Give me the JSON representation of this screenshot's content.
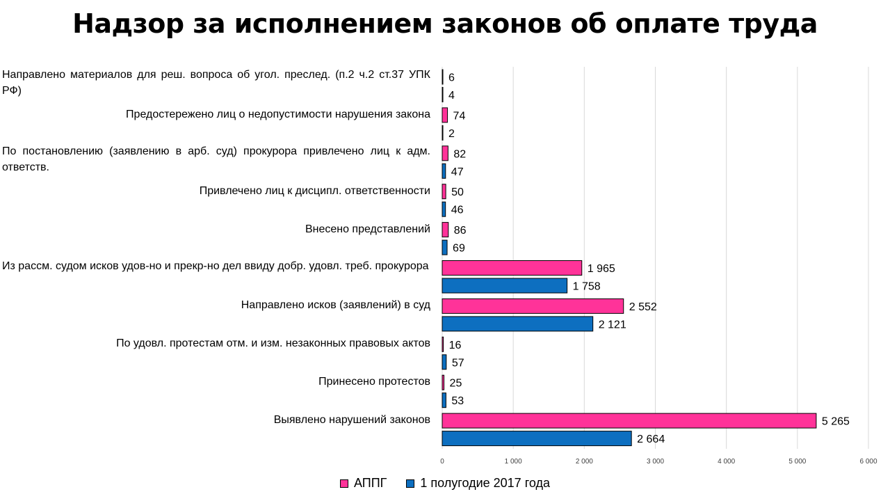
{
  "title": "Надзор за исполнением законов об оплате труда",
  "chart_data": {
    "type": "bar",
    "orientation": "horizontal",
    "categories": [
      "Направлено материалов для реш. вопроса об угол. преслед. (п.2 ч.2 ст.37 УПК РФ)",
      "Предостережено лиц о недопустимости нарушения  закона",
      "По постановлению (заявлению в арб. суд) прокурора привлечено лиц к адм. ответств.",
      "Привлечено лиц к дисципл. ответственности",
      "Внесено представлений",
      "Из рассм. судом исков удов-но и прекр-но дел ввиду добр. удовл. треб. прокурора",
      "Направлено исков (заявлений) в суд",
      "По удовл. протестам отм. и изм. незаконных правовых актов",
      "Принесено протестов",
      "Выявлено нарушений законов"
    ],
    "series": [
      {
        "name": "АППГ",
        "color": "#ff3399",
        "values": [
          6,
          74,
          82,
          50,
          86,
          1965,
          2552,
          16,
          25,
          5265
        ],
        "labels": [
          "6",
          "74",
          "82",
          "50",
          "86",
          "1 965",
          "2 552",
          "16",
          "25",
          "5 265"
        ]
      },
      {
        "name": "1 полугодие 2017 года",
        "color": "#0d6fc0",
        "values": [
          4,
          2,
          47,
          46,
          69,
          1758,
          2121,
          57,
          53,
          2664
        ],
        "labels": [
          "4",
          "2",
          "47",
          "46",
          "69",
          "1 758",
          "2 121",
          "57",
          "53",
          "2 664"
        ]
      }
    ],
    "xlim": [
      0,
      6000
    ],
    "xticks": [
      0,
      1000,
      2000,
      3000,
      4000,
      5000,
      6000
    ],
    "xtick_labels": [
      "0",
      "1 000",
      "2 000",
      "3 000",
      "4 000",
      "5 000",
      "6 000"
    ],
    "grid": true,
    "legend": "bottom"
  }
}
